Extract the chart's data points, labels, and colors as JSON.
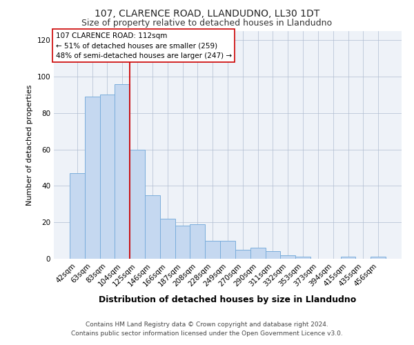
{
  "title": "107, CLARENCE ROAD, LLANDUDNO, LL30 1DT",
  "subtitle": "Size of property relative to detached houses in Llandudno",
  "xlabel": "Distribution of detached houses by size in Llandudno",
  "ylabel": "Number of detached properties",
  "bar_labels": [
    "42sqm",
    "63sqm",
    "83sqm",
    "104sqm",
    "125sqm",
    "146sqm",
    "166sqm",
    "187sqm",
    "208sqm",
    "228sqm",
    "249sqm",
    "270sqm",
    "290sqm",
    "311sqm",
    "332sqm",
    "353sqm",
    "373sqm",
    "394sqm",
    "415sqm",
    "435sqm",
    "456sqm"
  ],
  "bar_values": [
    47,
    89,
    90,
    96,
    60,
    35,
    22,
    18,
    19,
    10,
    10,
    5,
    6,
    4,
    2,
    1,
    0,
    0,
    1,
    0,
    1
  ],
  "bar_color": "#c5d8f0",
  "bar_edge_color": "#7aaddb",
  "vline_x": 3.5,
  "vline_color": "#cc0000",
  "ylim": [
    0,
    125
  ],
  "yticks": [
    0,
    20,
    40,
    60,
    80,
    100,
    120
  ],
  "annotation_text": "107 CLARENCE ROAD: 112sqm\n← 51% of detached houses are smaller (259)\n48% of semi-detached houses are larger (247) →",
  "annotation_box_color": "#ffffff",
  "annotation_box_edge": "#cc0000",
  "footer_line1": "Contains HM Land Registry data © Crown copyright and database right 2024.",
  "footer_line2": "Contains public sector information licensed under the Open Government Licence v3.0.",
  "bg_color": "#ffffff",
  "plot_bg_color": "#eef2f8",
  "title_fontsize": 10,
  "subtitle_fontsize": 9,
  "ylabel_fontsize": 8,
  "xlabel_fontsize": 9,
  "tick_fontsize": 7.5,
  "annotation_fontsize": 7.5,
  "footer_fontsize": 6.5
}
